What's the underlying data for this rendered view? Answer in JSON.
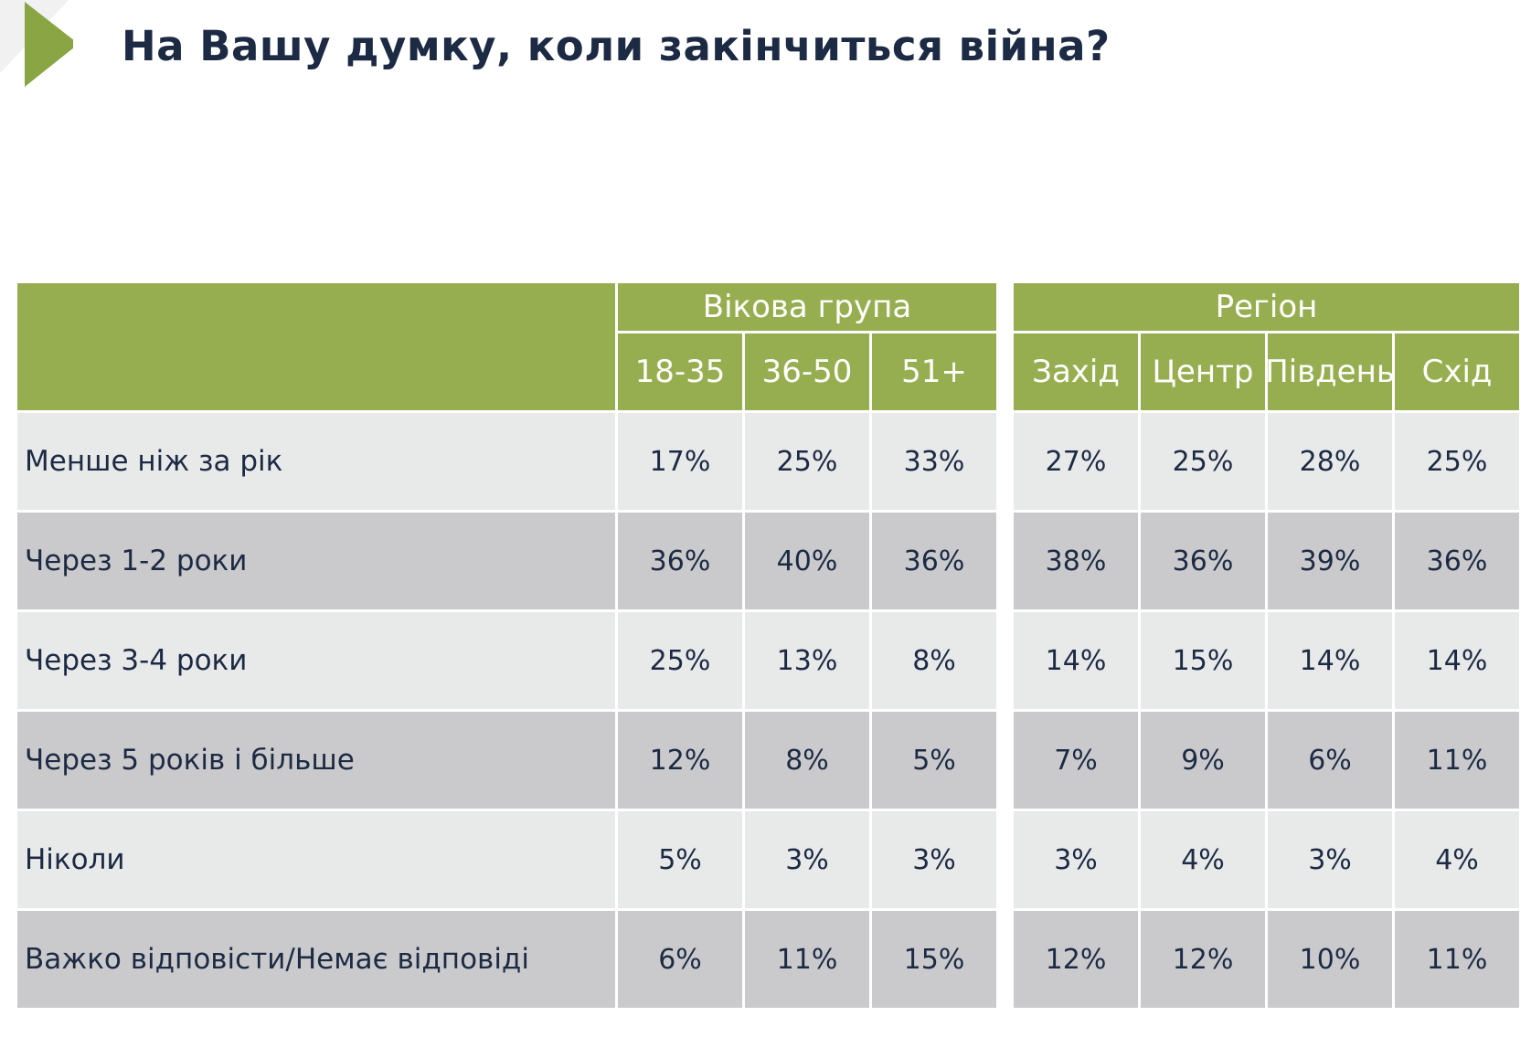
{
  "title": "На Вашу думку, коли закінчиться війна?",
  "colors": {
    "header_green": "#97ae50",
    "row_light": "#e8e9e9",
    "row_dark": "#cacacc",
    "text_dark": "#1c2a44"
  },
  "chart_data": {
    "type": "table",
    "title": "На Вашу думку, коли закінчиться війна?",
    "column_groups": [
      {
        "name": "Вікова група",
        "columns": [
          "18-35",
          "36-50",
          "51+"
        ]
      },
      {
        "name": "Регіон",
        "columns": [
          "Захід",
          "Центр",
          "Південь",
          "Схід"
        ]
      }
    ],
    "rows": [
      {
        "label": "Менше ніж за рік",
        "values": [
          "17%",
          "25%",
          "33%",
          "27%",
          "25%",
          "28%",
          "25%"
        ]
      },
      {
        "label": "Через 1-2 роки",
        "values": [
          "36%",
          "40%",
          "36%",
          "38%",
          "36%",
          "39%",
          "36%"
        ]
      },
      {
        "label": "Через 3-4 роки",
        "values": [
          "25%",
          "13%",
          "8%",
          "14%",
          "15%",
          "14%",
          "14%"
        ]
      },
      {
        "label": "Через 5 років і більше",
        "values": [
          "12%",
          "8%",
          "5%",
          "7%",
          "9%",
          "6%",
          "11%"
        ]
      },
      {
        "label": "Ніколи",
        "values": [
          "5%",
          "3%",
          "3%",
          "3%",
          "4%",
          "3%",
          "4%"
        ]
      },
      {
        "label": "Важко відповісти/Немає відповіді",
        "values": [
          "6%",
          "11%",
          "15%",
          "12%",
          "12%",
          "10%",
          "11%"
        ]
      }
    ]
  }
}
